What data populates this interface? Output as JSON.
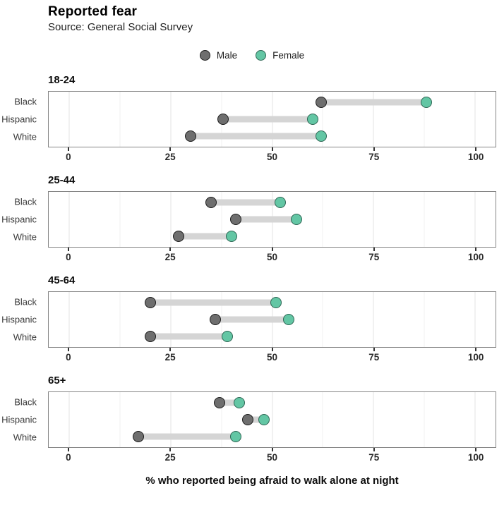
{
  "header": {
    "title": "Reported fear",
    "subtitle": "Source: General Social Survey"
  },
  "legend": [
    {
      "label": "Male",
      "fill": "#6e6e6e",
      "stroke": "#1b1b1b"
    },
    {
      "label": "Female",
      "fill": "#63c6a4",
      "stroke": "#2e6654"
    }
  ],
  "chart_data": {
    "type": "dumbbell",
    "title": "Reported fear",
    "subtitle": "Source: General Social Survey",
    "xlabel": "% who reported being afraid to walk alone at night",
    "xlim": [
      -5,
      105
    ],
    "x_ticks": [
      0,
      25,
      50,
      75,
      100
    ],
    "minor_gridlines": [
      12.5,
      37.5,
      62.5,
      87.5
    ],
    "grid": true,
    "legend_position": "top-center",
    "categories": [
      "Black",
      "Hispanic",
      "White"
    ],
    "series_names": [
      "Male",
      "Female"
    ],
    "facets": [
      {
        "title": "18-24",
        "rows": [
          {
            "category": "Black",
            "male": 62,
            "female": 88
          },
          {
            "category": "Hispanic",
            "male": 38,
            "female": 60
          },
          {
            "category": "White",
            "male": 30,
            "female": 62
          }
        ]
      },
      {
        "title": "25-44",
        "rows": [
          {
            "category": "Black",
            "male": 35,
            "female": 52
          },
          {
            "category": "Hispanic",
            "male": 41,
            "female": 56
          },
          {
            "category": "White",
            "male": 27,
            "female": 40
          }
        ]
      },
      {
        "title": "45-64",
        "rows": [
          {
            "category": "Black",
            "male": 20,
            "female": 51
          },
          {
            "category": "Hispanic",
            "male": 36,
            "female": 54
          },
          {
            "category": "White",
            "male": 20,
            "female": 39
          }
        ]
      },
      {
        "title": "65+",
        "rows": [
          {
            "category": "Black",
            "male": 37,
            "female": 42
          },
          {
            "category": "Hispanic",
            "male": 44,
            "female": 48
          },
          {
            "category": "White",
            "male": 17,
            "female": 41
          }
        ]
      }
    ],
    "colors": {
      "male_fill": "#6e6e6e",
      "male_stroke": "#1b1b1b",
      "female_fill": "#63c6a4",
      "female_stroke": "#2e6654",
      "connector": "#d5d5d5",
      "grid_major": "#e3e3e3",
      "grid_minor": "#f1f1f1",
      "panel_border": "#858585"
    }
  }
}
